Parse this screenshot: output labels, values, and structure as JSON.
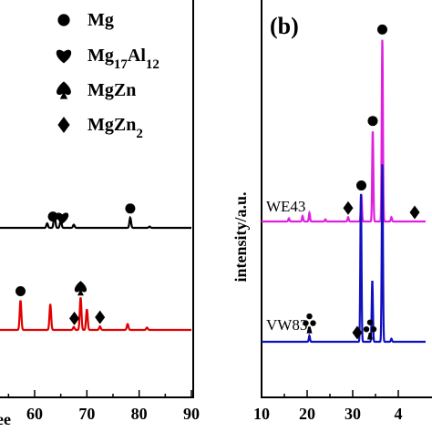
{
  "chart_data": [
    {
      "panel": "a",
      "type": "line",
      "xlabel_visible_fragment": "ee",
      "xlim": [
        0,
        90
      ],
      "x_ticks": [
        "60",
        "70",
        "80",
        "90"
      ],
      "legend": [
        {
          "symbol": "circle",
          "label": "Mg"
        },
        {
          "symbol": "heart",
          "label_parts": [
            "Mg",
            "17",
            "Al",
            "12"
          ]
        },
        {
          "symbol": "spade",
          "label": "MgZn"
        },
        {
          "symbol": "diamond",
          "label_parts": [
            "MgZn",
            "2"
          ]
        }
      ],
      "series": [
        {
          "color": "#000000",
          "baseline": 0,
          "peaks": [
            [
              62.4,
              0.07
            ],
            [
              63.8,
              0.22
            ],
            [
              65.0,
              0.12
            ],
            [
              67.5,
              0.05
            ],
            [
              78.3,
              0.16
            ],
            [
              82.0,
              0.02
            ]
          ],
          "markers": [
            {
              "symbol": "circle",
              "x": 63.5
            },
            {
              "symbol": "heart",
              "x": 65.3
            },
            {
              "symbol": "circle",
              "x": 78.3
            }
          ]
        },
        {
          "color": "#e00000",
          "baseline": 0,
          "peaks": [
            [
              57.3,
              0.5
            ],
            [
              63.0,
              0.43
            ],
            [
              67.5,
              0.05
            ],
            [
              68.8,
              0.55
            ],
            [
              70.0,
              0.35
            ],
            [
              72.5,
              0.06
            ],
            [
              77.8,
              0.1
            ],
            [
              81.5,
              0.04
            ]
          ],
          "markers": [
            {
              "symbol": "circle",
              "x": 57.3
            },
            {
              "symbol": "diamond",
              "x": 67.6
            },
            {
              "symbol": "spade",
              "x": 68.8
            },
            {
              "symbol": "diamond",
              "x": 72.5
            }
          ]
        }
      ]
    },
    {
      "panel": "b",
      "panel_label": "(b)",
      "type": "line",
      "ylabel": "intensity/a.u.",
      "xlim": [
        10,
        45
      ],
      "x_ticks": [
        "10",
        "20",
        "30",
        "4"
      ],
      "series": [
        {
          "name": "WE43",
          "color": "#e020e0",
          "baseline": 0,
          "peaks": [
            [
              16.0,
              0.03
            ],
            [
              19.0,
              0.05
            ],
            [
              20.5,
              0.08
            ],
            [
              24.0,
              0.02
            ],
            [
              29.0,
              0.04
            ],
            [
              31.9,
              0.25
            ],
            [
              34.4,
              0.85
            ],
            [
              36.5,
              1.7
            ],
            [
              38.5,
              0.04
            ]
          ],
          "markers": [
            {
              "symbol": "diamond",
              "x": 29.0
            },
            {
              "symbol": "circle",
              "x": 31.9
            },
            {
              "symbol": "circle",
              "x": 34.4
            },
            {
              "symbol": "circle",
              "x": 36.5
            },
            {
              "symbol": "diamond",
              "x": 43.6
            }
          ]
        },
        {
          "name": "VW83",
          "color": "#1010c0",
          "baseline": 0,
          "peaks": [
            [
              20.5,
              0.06
            ],
            [
              31.8,
              1.45
            ],
            [
              34.3,
              0.6
            ],
            [
              36.5,
              1.75
            ],
            [
              38.5,
              0.03
            ]
          ],
          "markers": [
            {
              "symbol": "club",
              "x": 20.5
            },
            {
              "symbol": "diamond",
              "x": 31.0
            },
            {
              "symbol": "club",
              "x": 33.8
            }
          ]
        }
      ]
    }
  ]
}
